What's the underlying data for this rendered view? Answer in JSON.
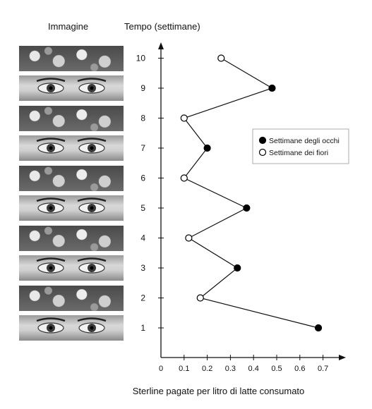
{
  "headers": {
    "image": "Immagine",
    "time": "Tempo (settimane)"
  },
  "strips": [
    {
      "week": 10,
      "kind": "flowers",
      "icon": "roses-photo"
    },
    {
      "week": 9,
      "kind": "eyes",
      "icon": "eyes-photo"
    },
    {
      "week": 8,
      "kind": "flowers",
      "icon": "tulips-photo"
    },
    {
      "week": 7,
      "kind": "eyes",
      "icon": "eyes-photo"
    },
    {
      "week": 6,
      "kind": "flowers",
      "icon": "flowers-photo"
    },
    {
      "week": 5,
      "kind": "eyes",
      "icon": "eyes-photo"
    },
    {
      "week": 4,
      "kind": "flowers",
      "icon": "flowers-photo"
    },
    {
      "week": 3,
      "kind": "eyes",
      "icon": "eyes-photo"
    },
    {
      "week": 2,
      "kind": "flowers",
      "icon": "flowers-photo"
    },
    {
      "week": 1,
      "kind": "eyes",
      "icon": "eyes-photo"
    }
  ],
  "chart_data": {
    "type": "line",
    "orientation": "horizontal",
    "xlabel": "Sterline pagate per litro di latte consumato",
    "ylabel": "Tempo (settimane)",
    "xlim": [
      0,
      0.75
    ],
    "ylim": [
      0.5,
      10.8
    ],
    "xticks": [
      "0",
      "0.1",
      "0.2",
      "0.3",
      "0.4",
      "0.5",
      "0.6",
      "0.7"
    ],
    "yticks": [
      "1",
      "2",
      "3",
      "4",
      "5",
      "6",
      "7",
      "8",
      "9",
      "10"
    ],
    "points": [
      {
        "week": 1,
        "value": 0.68,
        "type": "eyes"
      },
      {
        "week": 2,
        "value": 0.17,
        "type": "flowers"
      },
      {
        "week": 3,
        "value": 0.33,
        "type": "eyes"
      },
      {
        "week": 4,
        "value": 0.12,
        "type": "flowers"
      },
      {
        "week": 5,
        "value": 0.37,
        "type": "eyes"
      },
      {
        "week": 6,
        "value": 0.1,
        "type": "flowers"
      },
      {
        "week": 7,
        "value": 0.2,
        "type": "eyes"
      },
      {
        "week": 8,
        "value": 0.1,
        "type": "flowers"
      },
      {
        "week": 9,
        "value": 0.48,
        "type": "eyes"
      },
      {
        "week": 10,
        "value": 0.26,
        "type": "flowers"
      }
    ],
    "legend": {
      "position": "right",
      "items": [
        {
          "type": "eyes",
          "label": "Settimane degli occhi",
          "marker": "filled-circle"
        },
        {
          "type": "flowers",
          "label": "Settimane dei fiori",
          "marker": "open-circle"
        }
      ]
    },
    "grid": false,
    "colors": {
      "line": "#111111",
      "filled": "#000000",
      "open": "#ffffff"
    }
  }
}
